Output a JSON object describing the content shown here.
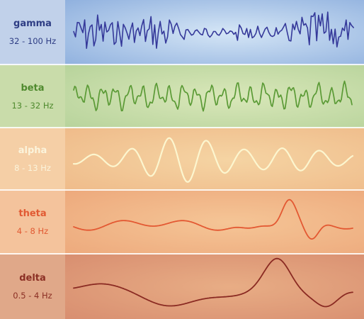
{
  "bands": [
    {
      "name": "gamma",
      "range": "32 - 100 Hz",
      "label_bg": "#c1d1ea",
      "wave_bg_center": "#d5e6f6",
      "wave_bg_edge": "#8fb0de",
      "name_color": "#2e3d84",
      "range_color": "#2e3d84",
      "wave_color": "#35399a"
    },
    {
      "name": "beta",
      "range": "13 - 32 Hz",
      "label_bg": "#c9dcaa",
      "wave_bg_center": "#d9e7b9",
      "wave_bg_edge": "#b7d39b",
      "name_color": "#4f8a2e",
      "range_color": "#4f8a2e",
      "wave_color": "#5a9a35"
    },
    {
      "name": "alpha",
      "range": "8 - 13 Hz",
      "label_bg": "#f5cfa6",
      "wave_bg_center": "#f5d4a3",
      "wave_bg_edge": "#efbb8a",
      "name_color": "#fbf4dc",
      "range_color": "#fbf4dc",
      "wave_color": "#fcf6cf"
    },
    {
      "name": "theta",
      "range": "4 - 8 Hz",
      "label_bg": "#f4c39c",
      "wave_bg_center": "#f5c596",
      "wave_bg_edge": "#eda97c",
      "name_color": "#e15a33",
      "range_color": "#e15a33",
      "wave_color": "#e35832"
    },
    {
      "name": "delta",
      "range": "0.5 - 4 Hz",
      "label_bg": "#e0a889",
      "wave_bg_center": "#e8ad85",
      "wave_bg_edge": "#d88e70",
      "name_color": "#8b2f24",
      "range_color": "#8b2f24",
      "wave_color": "#8a2a22"
    }
  ]
}
